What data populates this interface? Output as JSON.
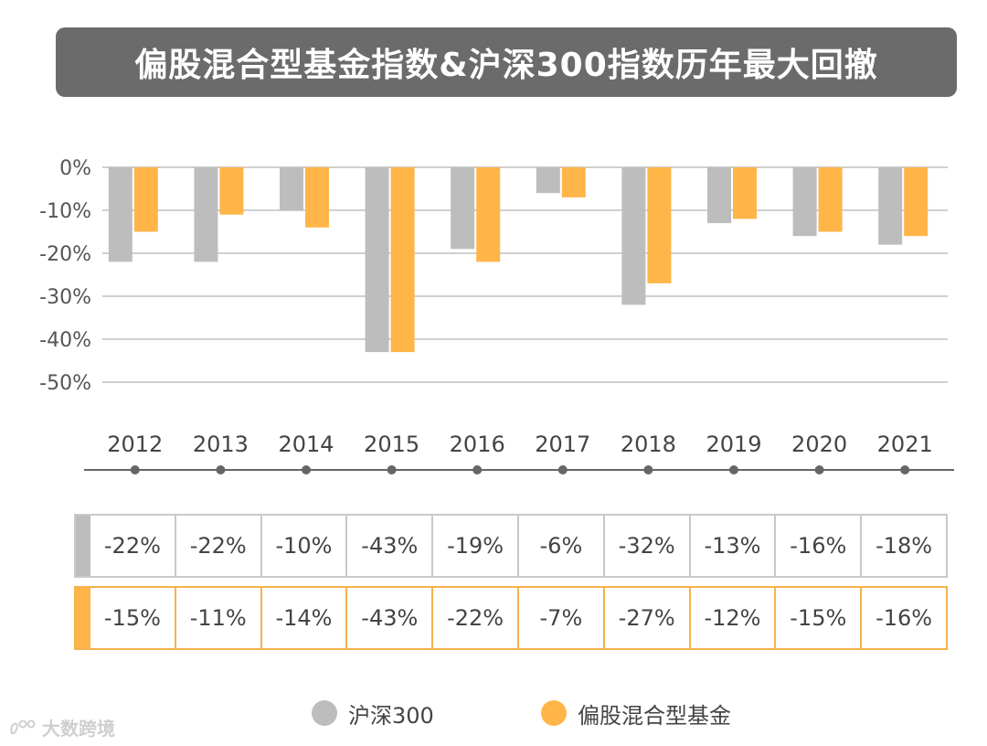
{
  "title": "偏股混合型基金指数&沪深300指数历年最大回撤",
  "colors": {
    "hs300": "#bdbdbd",
    "fund": "#ffb547",
    "title_bg": "#6b6b6b",
    "grid": "#d0d0d0",
    "axis": "#666666"
  },
  "chart_data": {
    "type": "bar",
    "title": "偏股混合型基金指数&沪深300指数历年最大回撤",
    "categories": [
      "2012",
      "2013",
      "2014",
      "2015",
      "2016",
      "2017",
      "2018",
      "2019",
      "2020",
      "2021"
    ],
    "series": [
      {
        "name": "沪深300",
        "values": [
          -22,
          -22,
          -10,
          -43,
          -19,
          -6,
          -32,
          -13,
          -16,
          -18
        ]
      },
      {
        "name": "偏股混合型基金",
        "values": [
          -15,
          -11,
          -14,
          -43,
          -22,
          -7,
          -27,
          -12,
          -15,
          -16
        ]
      }
    ],
    "y_ticks": [
      {
        "value": 0,
        "label": "0%"
      },
      {
        "value": -10,
        "label": "-10%"
      },
      {
        "value": -20,
        "label": "-20%"
      },
      {
        "value": -30,
        "label": "-30%"
      },
      {
        "value": -40,
        "label": "-40%"
      },
      {
        "value": -50,
        "label": "-50%"
      }
    ],
    "ylim": [
      -50,
      0
    ],
    "xlabel": "",
    "ylabel": "",
    "grid": true,
    "legend_position": "bottom"
  },
  "table": {
    "hs300_cells": [
      "-22%",
      "-22%",
      "-10%",
      "-43%",
      "-19%",
      "-6%",
      "-32%",
      "-13%",
      "-16%",
      "-18%"
    ],
    "fund_cells": [
      "-15%",
      "-11%",
      "-14%",
      "-43%",
      "-22%",
      "-7%",
      "-27%",
      "-12%",
      "-15%",
      "-16%"
    ]
  },
  "legend": {
    "hs300_label": "沪深300",
    "fund_label": "偏股混合型基金"
  },
  "watermark": {
    "text": "大数跨境"
  }
}
